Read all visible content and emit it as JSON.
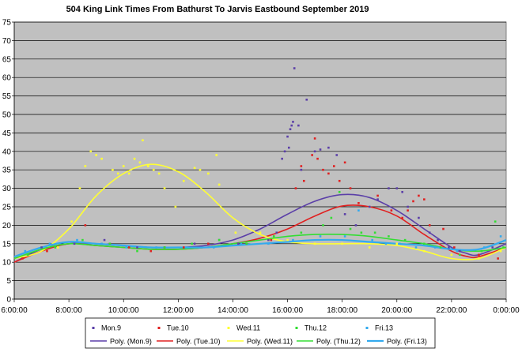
{
  "chart_data": {
    "type": "scatter",
    "title": "504 King Link Times From Bathurst To Jarvis Eastbound September 2019",
    "xlabel": "",
    "ylabel": "",
    "x_ticks": [
      "6:00:00",
      "8:00:00",
      "10:00:00",
      "12:00:00",
      "14:00:00",
      "16:00:00",
      "18:00:00",
      "20:00:00",
      "22:00:00",
      "0:00:00"
    ],
    "xlim": [
      6,
      24
    ],
    "y_ticks": [
      "0",
      "5",
      "10",
      "15",
      "20",
      "25",
      "30",
      "35",
      "40",
      "45",
      "50",
      "55",
      "60",
      "65",
      "70",
      "75"
    ],
    "ylim": [
      0,
      75
    ],
    "grid": "horizontal",
    "legend_position": "bottom",
    "colors": {
      "plot_background": "#c0c0c0",
      "mon": "#5b3fa8",
      "tue": "#e02020",
      "wed": "#ffff33",
      "thu": "#33dd33",
      "fri": "#33aaee"
    },
    "series": [
      {
        "name": "Mon.9",
        "color": "#5b3fa8",
        "trend_name": "Poly. (Mon.9)",
        "trend": [
          [
            6,
            10
          ],
          [
            7,
            13.5
          ],
          [
            8,
            15
          ],
          [
            9,
            15
          ],
          [
            10,
            14.5
          ],
          [
            11,
            14
          ],
          [
            12,
            14
          ],
          [
            13,
            14.5
          ],
          [
            14,
            16
          ],
          [
            15,
            19
          ],
          [
            16,
            23
          ],
          [
            17,
            26.5
          ],
          [
            18,
            28.3
          ],
          [
            19,
            27.5
          ],
          [
            20,
            24
          ],
          [
            21,
            19
          ],
          [
            22,
            14
          ],
          [
            22.5,
            12.5
          ],
          [
            23,
            12
          ],
          [
            24,
            15
          ]
        ],
        "points": [
          [
            15.3,
            16
          ],
          [
            15.6,
            18
          ],
          [
            15.8,
            38
          ],
          [
            15.9,
            40
          ],
          [
            16.0,
            44
          ],
          [
            16.05,
            41
          ],
          [
            16.1,
            46
          ],
          [
            16.15,
            47
          ],
          [
            16.2,
            48
          ],
          [
            16.25,
            62.5
          ],
          [
            16.4,
            47
          ],
          [
            16.5,
            35
          ],
          [
            16.7,
            54
          ],
          [
            17.0,
            40
          ],
          [
            17.2,
            40.5
          ],
          [
            17.5,
            41
          ],
          [
            17.8,
            39
          ],
          [
            18.1,
            23
          ],
          [
            18.5,
            20
          ],
          [
            19.0,
            25
          ],
          [
            19.3,
            27
          ],
          [
            19.7,
            30
          ],
          [
            20.0,
            30
          ],
          [
            20.2,
            29
          ],
          [
            20.4,
            25
          ],
          [
            20.8,
            22
          ],
          [
            21.2,
            18
          ],
          [
            21.5,
            16
          ],
          [
            21.9,
            14
          ],
          [
            22.3,
            13
          ],
          [
            7.0,
            14
          ],
          [
            8.2,
            15
          ],
          [
            9.3,
            16
          ],
          [
            10.5,
            14
          ],
          [
            11.5,
            14
          ],
          [
            12.6,
            15
          ],
          [
            13.5,
            16
          ],
          [
            14.2,
            15
          ],
          [
            23.5,
            14
          ]
        ]
      },
      {
        "name": "Tue.10",
        "color": "#e02020",
        "trend_name": "Poly. (Tue.10)",
        "trend": [
          [
            6,
            10
          ],
          [
            7,
            13
          ],
          [
            8,
            15
          ],
          [
            9,
            14.5
          ],
          [
            10,
            14
          ],
          [
            11,
            13.5
          ],
          [
            12,
            13.5
          ],
          [
            13,
            14
          ],
          [
            14,
            15
          ],
          [
            15,
            16.5
          ],
          [
            16,
            19
          ],
          [
            17,
            22.5
          ],
          [
            18,
            25.2
          ],
          [
            19,
            25
          ],
          [
            20,
            22.5
          ],
          [
            21,
            17.5
          ],
          [
            22,
            13
          ],
          [
            22.6,
            11.5
          ],
          [
            23,
            11.5
          ],
          [
            24,
            14
          ]
        ],
        "points": [
          [
            6.3,
            11
          ],
          [
            7.2,
            13
          ],
          [
            8.6,
            20
          ],
          [
            9.5,
            15
          ],
          [
            10.2,
            14
          ],
          [
            11.0,
            13
          ],
          [
            12.2,
            14
          ],
          [
            13.1,
            15
          ],
          [
            14.5,
            15
          ],
          [
            15.4,
            16
          ],
          [
            16.3,
            30
          ],
          [
            16.5,
            36
          ],
          [
            16.6,
            32
          ],
          [
            16.9,
            39
          ],
          [
            17.0,
            43.5
          ],
          [
            17.1,
            38
          ],
          [
            17.3,
            35
          ],
          [
            17.5,
            34
          ],
          [
            17.7,
            36
          ],
          [
            17.9,
            32
          ],
          [
            18.1,
            37
          ],
          [
            18.3,
            30
          ],
          [
            18.6,
            26
          ],
          [
            19.3,
            28
          ],
          [
            19.8,
            24
          ],
          [
            20.2,
            22
          ],
          [
            20.4,
            24
          ],
          [
            20.6,
            26.5
          ],
          [
            20.8,
            28
          ],
          [
            21.0,
            27
          ],
          [
            21.2,
            20
          ],
          [
            21.7,
            19
          ],
          [
            22.1,
            14
          ],
          [
            23.0,
            12
          ],
          [
            23.7,
            11
          ]
        ]
      },
      {
        "name": "Wed.11",
        "color": "#ffff33",
        "trend_name": "Poly. (Wed.11)",
        "trend": [
          [
            6,
            11
          ],
          [
            7,
            13
          ],
          [
            8,
            19
          ],
          [
            9,
            28
          ],
          [
            10,
            34
          ],
          [
            11,
            36.5
          ],
          [
            12,
            34.5
          ],
          [
            13,
            29
          ],
          [
            14,
            22
          ],
          [
            15,
            17.5
          ],
          [
            16,
            15.5
          ],
          [
            17,
            15
          ],
          [
            18,
            15
          ],
          [
            19,
            15
          ],
          [
            20,
            14.5
          ],
          [
            21,
            13
          ],
          [
            22,
            11
          ],
          [
            23,
            11
          ],
          [
            24,
            14
          ]
        ],
        "points": [
          [
            7.6,
            14
          ],
          [
            8.1,
            21
          ],
          [
            8.4,
            30
          ],
          [
            8.6,
            36
          ],
          [
            8.8,
            40
          ],
          [
            9.0,
            39
          ],
          [
            9.2,
            38
          ],
          [
            9.6,
            35
          ],
          [
            9.8,
            34
          ],
          [
            10.0,
            36
          ],
          [
            10.2,
            34
          ],
          [
            10.4,
            38
          ],
          [
            10.6,
            37
          ],
          [
            10.7,
            43
          ],
          [
            10.9,
            36
          ],
          [
            11.1,
            35
          ],
          [
            11.3,
            34
          ],
          [
            11.5,
            30
          ],
          [
            11.9,
            25
          ],
          [
            12.2,
            32
          ],
          [
            12.6,
            35.5
          ],
          [
            12.8,
            35
          ],
          [
            13.1,
            34
          ],
          [
            13.4,
            39
          ],
          [
            13.5,
            31
          ],
          [
            14.1,
            18
          ],
          [
            15.0,
            18
          ],
          [
            16.0,
            16
          ],
          [
            17.0,
            15
          ],
          [
            18.0,
            15
          ],
          [
            19.0,
            14
          ],
          [
            20.0,
            15
          ],
          [
            21.0,
            13
          ],
          [
            22.0,
            12
          ],
          [
            23.0,
            11
          ],
          [
            23.8,
            13
          ]
        ]
      },
      {
        "name": "Thu.12",
        "color": "#33dd33",
        "trend_name": "Poly. (Thu.12)",
        "trend": [
          [
            6,
            11
          ],
          [
            7,
            13.5
          ],
          [
            8,
            15
          ],
          [
            9,
            14.5
          ],
          [
            10,
            14
          ],
          [
            11,
            13.5
          ],
          [
            12,
            13.5
          ],
          [
            13,
            14
          ],
          [
            14,
            15
          ],
          [
            15,
            16
          ],
          [
            16,
            17
          ],
          [
            17,
            17.5
          ],
          [
            18,
            17.5
          ],
          [
            19,
            17
          ],
          [
            20,
            16
          ],
          [
            21,
            15
          ],
          [
            22,
            13.5
          ],
          [
            23,
            13
          ],
          [
            24,
            14
          ]
        ],
        "points": [
          [
            6.5,
            12
          ],
          [
            7.5,
            14
          ],
          [
            8.5,
            16
          ],
          [
            9.5,
            15
          ],
          [
            10.5,
            13
          ],
          [
            11.5,
            14
          ],
          [
            12.5,
            15
          ],
          [
            13.5,
            16
          ],
          [
            14.5,
            15
          ],
          [
            15.5,
            17
          ],
          [
            16.5,
            18
          ],
          [
            17.3,
            20
          ],
          [
            17.6,
            22
          ],
          [
            17.9,
            29
          ],
          [
            18.3,
            19
          ],
          [
            18.7,
            18
          ],
          [
            19.2,
            18
          ],
          [
            19.7,
            17
          ],
          [
            20.3,
            16
          ],
          [
            21.0,
            15
          ],
          [
            21.6,
            14
          ],
          [
            22.3,
            12
          ],
          [
            23.1,
            13
          ],
          [
            23.6,
            21
          ],
          [
            23.9,
            14
          ]
        ]
      },
      {
        "name": "Fri.13",
        "color": "#33aaee",
        "trend_name": "Poly. (Fri.13)",
        "trend": [
          [
            6,
            11.5
          ],
          [
            7,
            14
          ],
          [
            8,
            15.5
          ],
          [
            9,
            15
          ],
          [
            10,
            14.5
          ],
          [
            11,
            14
          ],
          [
            12,
            14
          ],
          [
            13,
            14
          ],
          [
            14,
            14.5
          ],
          [
            15,
            15
          ],
          [
            16,
            15.5
          ],
          [
            17,
            16
          ],
          [
            18,
            16
          ],
          [
            19,
            15.5
          ],
          [
            20,
            15
          ],
          [
            21,
            14.5
          ],
          [
            22,
            13.5
          ],
          [
            23,
            13.5
          ],
          [
            24,
            16
          ]
        ],
        "points": [
          [
            6.4,
            13
          ],
          [
            7.3,
            15
          ],
          [
            8.3,
            16
          ],
          [
            9.2,
            15
          ],
          [
            10.1,
            14
          ],
          [
            11.2,
            14
          ],
          [
            12.3,
            14
          ],
          [
            13.3,
            14
          ],
          [
            14.3,
            15
          ],
          [
            15.3,
            15
          ],
          [
            16.2,
            16
          ],
          [
            17.2,
            17
          ],
          [
            18.1,
            17
          ],
          [
            18.6,
            24
          ],
          [
            19.1,
            16
          ],
          [
            19.6,
            15
          ],
          [
            20.1,
            15
          ],
          [
            20.7,
            14
          ],
          [
            21.4,
            14
          ],
          [
            22.2,
            13
          ],
          [
            23.2,
            14
          ],
          [
            23.8,
            17
          ]
        ]
      }
    ]
  }
}
